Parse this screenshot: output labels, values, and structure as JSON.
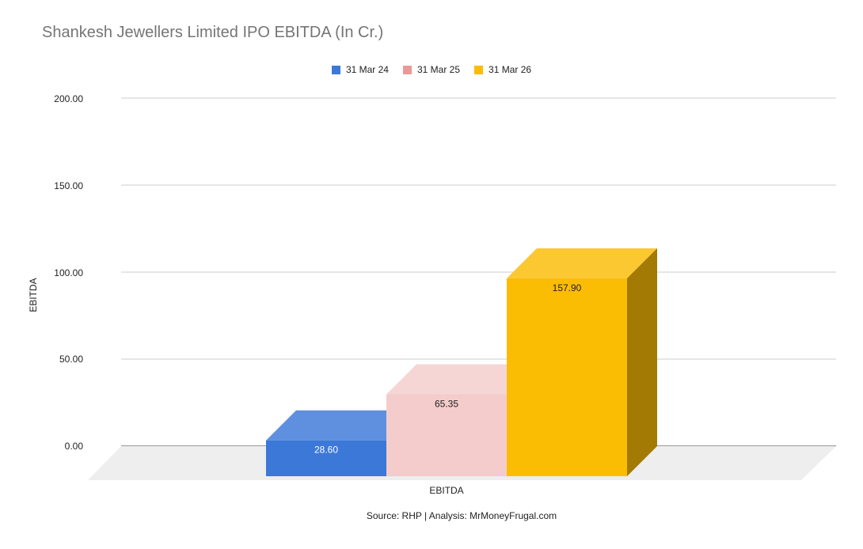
{
  "chart_data": {
    "type": "bar",
    "title": "Shankesh Jewellers Limited IPO EBITDA (In Cr.)",
    "xlabel": "EBITDA",
    "ylabel": "EBITDA",
    "categories": [
      "EBITDA"
    ],
    "series": [
      {
        "name": "31 Mar 24",
        "values": [
          28.6
        ],
        "label": "28.60",
        "color": "#3c78d8",
        "label_color": "#ffffff"
      },
      {
        "name": "31 Mar 25",
        "values": [
          65.35
        ],
        "label": "65.35",
        "color": "#f4cccc",
        "label_color": "#222222"
      },
      {
        "name": "31 Mar 26",
        "values": [
          157.9
        ],
        "label": "157.90",
        "color": "#fbbc04",
        "label_color": "#222222"
      }
    ],
    "ylim": [
      0,
      200
    ],
    "yticks": [
      "0.00",
      "50.00",
      "100.00",
      "150.00",
      "200.00"
    ],
    "grid": true,
    "legend": "top-center",
    "three_d": true
  },
  "footer": {
    "source": "Source: RHP | Analysis: MrMoneyFrugal.com"
  }
}
